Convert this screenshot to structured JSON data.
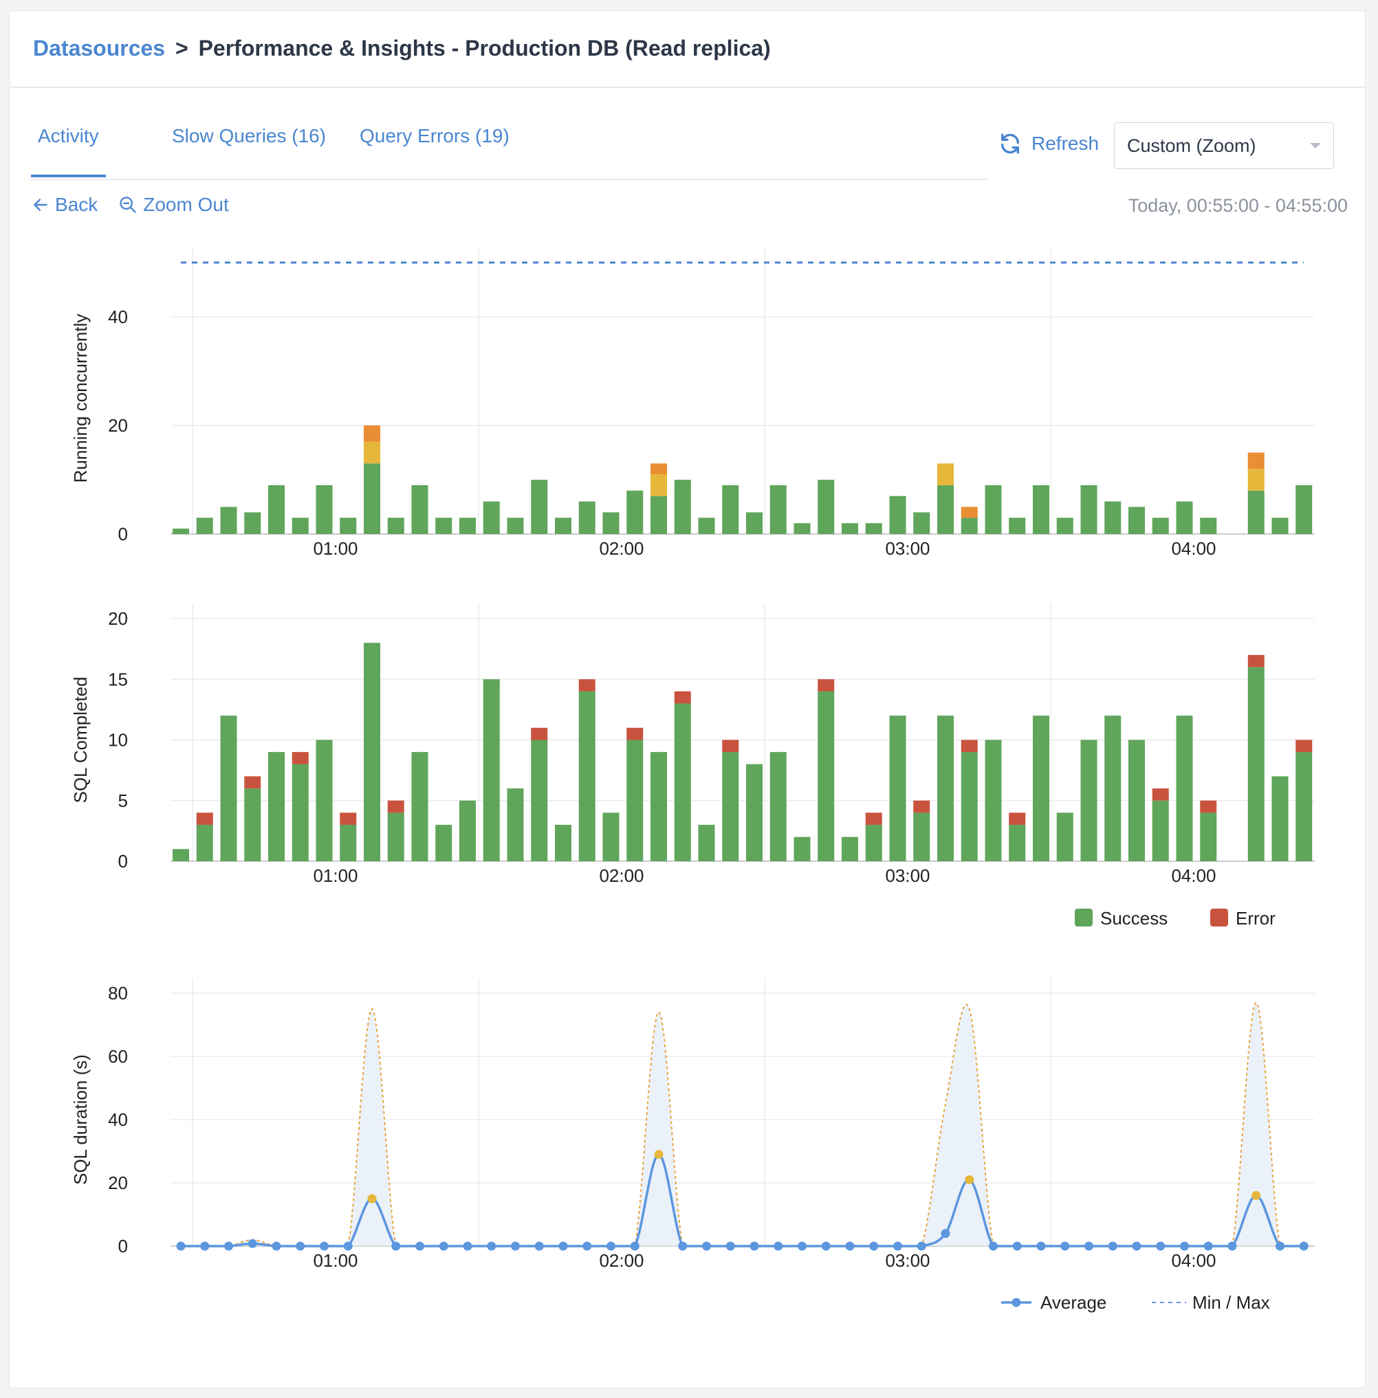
{
  "breadcrumb": {
    "root": "Datasources",
    "separator": ">",
    "current": "Performance & Insights - Production DB (Read replica)"
  },
  "tabs": [
    {
      "label": "Activity",
      "active": true
    },
    {
      "label": "Slow Queries (16)",
      "active": false
    },
    {
      "label": "Query Errors (19)",
      "active": false
    }
  ],
  "toolbar": {
    "refresh_label": "Refresh",
    "range_select": "Custom (Zoom)",
    "back_label": "Back",
    "zoom_out_label": "Zoom Out",
    "date_range": "Today, 00:55:00 - 04:55:00"
  },
  "colors": {
    "accent": "#4a86d0",
    "success": "#5fa55a",
    "error": "#c9533e",
    "warning_yellow": "#e6b73a",
    "warning_orange": "#e98e32",
    "average": "#5b96de",
    "minmax": "#e8a33a"
  },
  "chart_data": [
    {
      "type": "bar",
      "stacked": true,
      "ylabel": "Running concurrently",
      "ylim": [
        0,
        50
      ],
      "yticks": [
        0,
        20,
        40
      ],
      "xticks": [
        "01:00",
        "02:00",
        "03:00",
        "04:00"
      ],
      "limit_line": 50,
      "x_start": "00:55",
      "x_step_minutes": 5,
      "x_count": 48,
      "series": [
        {
          "key": "green",
          "values": [
            1,
            3,
            5,
            4,
            9,
            3,
            9,
            3,
            13,
            3,
            9,
            3,
            3,
            6,
            3,
            10,
            3,
            6,
            4,
            8,
            7,
            10,
            3,
            9,
            4,
            9,
            2,
            10,
            2,
            2,
            7,
            4,
            9,
            3,
            9,
            3,
            9,
            3,
            9,
            6,
            5,
            3,
            6,
            3,
            0,
            8,
            3,
            9
          ]
        },
        {
          "key": "yellow",
          "values": [
            0,
            0,
            0,
            0,
            0,
            0,
            0,
            0,
            4,
            0,
            0,
            0,
            0,
            0,
            0,
            0,
            0,
            0,
            0,
            0,
            4,
            0,
            0,
            0,
            0,
            0,
            0,
            0,
            0,
            0,
            0,
            0,
            4,
            0,
            0,
            0,
            0,
            0,
            0,
            0,
            0,
            0,
            0,
            0,
            0,
            4,
            0,
            0
          ]
        },
        {
          "key": "orange",
          "values": [
            0,
            0,
            0,
            0,
            0,
            0,
            0,
            0,
            3,
            0,
            0,
            0,
            0,
            0,
            0,
            0,
            0,
            0,
            0,
            0,
            2,
            0,
            0,
            0,
            0,
            0,
            0,
            0,
            0,
            0,
            0,
            0,
            0,
            2,
            0,
            0,
            0,
            0,
            0,
            0,
            0,
            0,
            0,
            0,
            0,
            3,
            0,
            0
          ]
        }
      ]
    },
    {
      "type": "bar",
      "stacked": true,
      "ylabel": "SQL Completed",
      "ylim": [
        0,
        20
      ],
      "yticks": [
        0,
        5,
        10,
        15,
        20
      ],
      "xticks": [
        "01:00",
        "02:00",
        "03:00",
        "04:00"
      ],
      "series": [
        {
          "name": "Success",
          "key": "success",
          "values": [
            1,
            3,
            12,
            6,
            9,
            8,
            10,
            3,
            18,
            4,
            9,
            3,
            5,
            15,
            6,
            10,
            3,
            14,
            4,
            10,
            9,
            13,
            3,
            9,
            8,
            9,
            2,
            14,
            2,
            3,
            12,
            4,
            12,
            9,
            10,
            3,
            12,
            4,
            10,
            12,
            10,
            5,
            12,
            4,
            0,
            16,
            7,
            9
          ]
        },
        {
          "name": "Error",
          "key": "error",
          "values": [
            0,
            1,
            0,
            1,
            0,
            1,
            0,
            1,
            0,
            1,
            0,
            0,
            0,
            0,
            0,
            1,
            0,
            1,
            0,
            1,
            0,
            1,
            0,
            1,
            0,
            0,
            0,
            1,
            0,
            1,
            0,
            1,
            0,
            1,
            0,
            1,
            0,
            0,
            0,
            0,
            0,
            1,
            0,
            1,
            0,
            1,
            0,
            1
          ]
        }
      ],
      "legend": [
        "Success",
        "Error"
      ],
      "legend_position": "bottom-right"
    },
    {
      "type": "line",
      "ylabel": "SQL duration (s)",
      "ylim": [
        0,
        80
      ],
      "yticks": [
        0,
        20,
        40,
        60,
        80
      ],
      "xticks": [
        "01:00",
        "02:00",
        "03:00",
        "04:00"
      ],
      "series": [
        {
          "name": "Average",
          "key": "avg",
          "values": [
            0,
            0,
            0,
            0.8,
            0,
            0,
            0,
            0,
            15,
            0,
            0,
            0,
            0,
            0,
            0,
            0,
            0,
            0,
            0,
            0,
            29,
            0,
            0,
            0,
            0,
            0,
            0,
            0,
            0,
            0,
            0,
            0,
            4,
            21,
            0,
            0,
            0,
            0,
            0,
            0,
            0,
            0,
            0,
            0,
            0,
            16,
            0,
            0
          ]
        },
        {
          "name": "Min / Max",
          "key": "max",
          "values": [
            0,
            0,
            0,
            2,
            0,
            0,
            0,
            0,
            75,
            0,
            0,
            0,
            0,
            0,
            0,
            0,
            0,
            0,
            0,
            0,
            74,
            0,
            0,
            0,
            0,
            0,
            0,
            0,
            0,
            0,
            0,
            0,
            45,
            75,
            0,
            0,
            0,
            0,
            0,
            0,
            0,
            0,
            0,
            0,
            0,
            77,
            0,
            0
          ]
        }
      ],
      "legend": [
        "Average",
        "Min / Max"
      ],
      "legend_position": "bottom-right"
    }
  ]
}
